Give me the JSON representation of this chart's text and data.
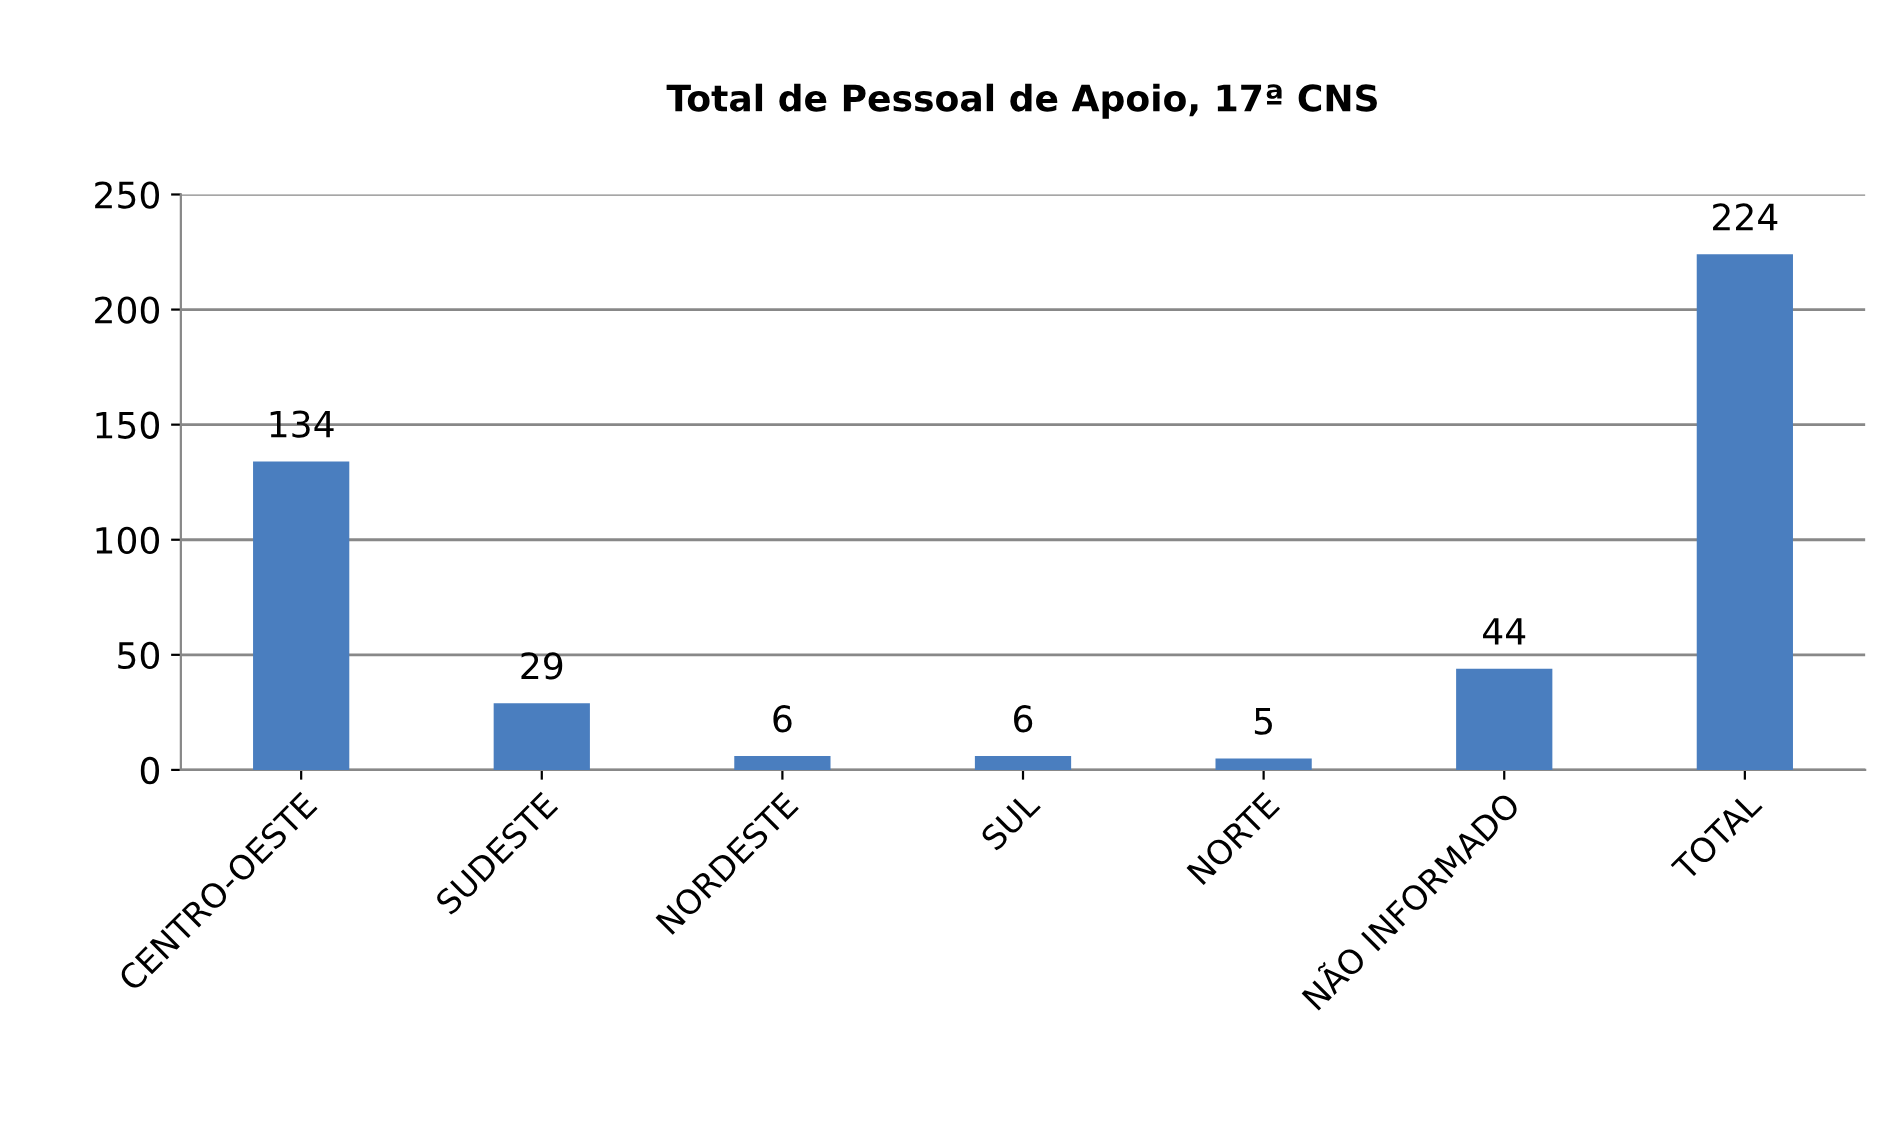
{
  "chart_data": {
    "type": "bar",
    "title": "Total de Pessoal de Apoio, 17ª CNS",
    "categories": [
      "CENTRO-OESTE",
      "SUDESTE",
      "NORDESTE",
      "SUL",
      "NORTE",
      "NÃO INFORMADO",
      "TOTAL"
    ],
    "values": [
      134,
      29,
      6,
      6,
      5,
      44,
      224
    ],
    "color": "#4a7ebf",
    "ylim": [
      0,
      250
    ],
    "yticks": [
      0,
      50,
      100,
      150,
      200,
      250
    ],
    "grid": "y",
    "data_labels": true,
    "legend": false
  }
}
